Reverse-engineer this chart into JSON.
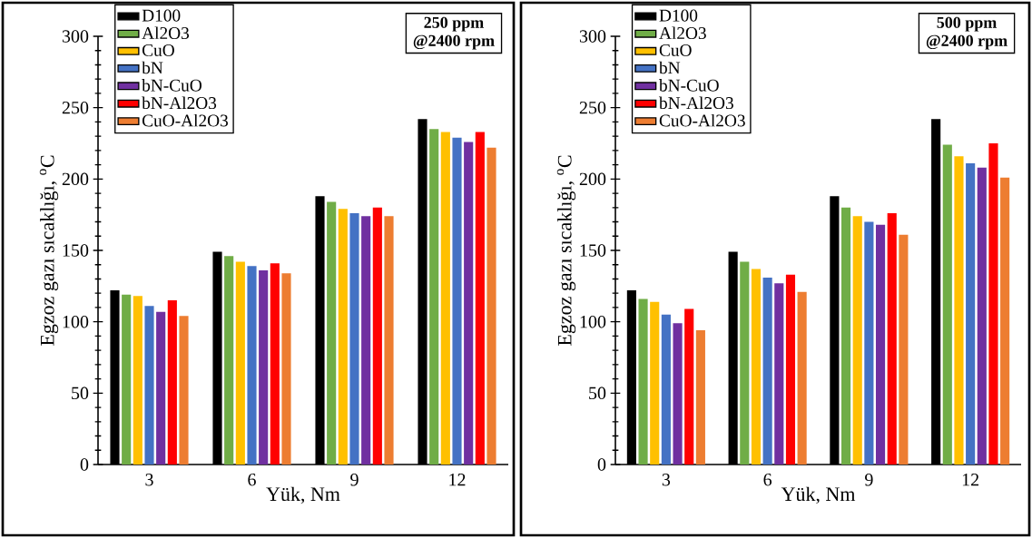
{
  "chart_data": [
    {
      "type": "bar",
      "xlabel": "Yük, Nm",
      "ylabel": "Egzoz gazı sıcaklığı, $^{o}$C",
      "annotations": [
        "250 ppm",
        "@2400 rpm"
      ],
      "categories": [
        "3",
        "6",
        "9",
        "12"
      ],
      "ylim": [
        0,
        300
      ],
      "yticks": [
        0,
        50,
        100,
        150,
        200,
        250,
        300
      ],
      "legend": "top left",
      "series": [
        {
          "name": "D100",
          "color": "#000000",
          "values": [
            122,
            149,
            188,
            242
          ]
        },
        {
          "name": "Al2O3",
          "color": "#70ad47",
          "values": [
            119,
            146,
            184,
            235
          ]
        },
        {
          "name": "CuO",
          "color": "#ffc000",
          "values": [
            118,
            142,
            179,
            233
          ]
        },
        {
          "name": "bN",
          "color": "#4472c4",
          "values": [
            111,
            139,
            176,
            229
          ]
        },
        {
          "name": "bN-CuO",
          "color": "#7030a0",
          "values": [
            107,
            136,
            174,
            226
          ]
        },
        {
          "name": "bN-Al2O3",
          "color": "#ff0000",
          "values": [
            115,
            141,
            180,
            233
          ]
        },
        {
          "name": "CuO-Al2O3",
          "color": "#ed7d31",
          "values": [
            104,
            134,
            174,
            222
          ]
        }
      ]
    },
    {
      "type": "bar",
      "xlabel": "Yük, Nm",
      "ylabel": "Egzoz gazı sıcaklığı, $^{o}$C",
      "annotations": [
        "500 ppm",
        "@2400 rpm"
      ],
      "categories": [
        "3",
        "6",
        "9",
        "12"
      ],
      "ylim": [
        0,
        300
      ],
      "yticks": [
        0,
        50,
        100,
        150,
        200,
        250,
        300
      ],
      "legend": "top left",
      "series": [
        {
          "name": "D100",
          "color": "#000000",
          "values": [
            122,
            149,
            188,
            242
          ]
        },
        {
          "name": "Al2O3",
          "color": "#70ad47",
          "values": [
            116,
            142,
            180,
            224
          ]
        },
        {
          "name": "CuO",
          "color": "#ffc000",
          "values": [
            114,
            137,
            174,
            216
          ]
        },
        {
          "name": "bN",
          "color": "#4472c4",
          "values": [
            105,
            131,
            170,
            211
          ]
        },
        {
          "name": "bN-CuO",
          "color": "#7030a0",
          "values": [
            99,
            127,
            168,
            208
          ]
        },
        {
          "name": "bN-Al2O3",
          "color": "#ff0000",
          "values": [
            109,
            133,
            176,
            225
          ]
        },
        {
          "name": "CuO-Al2O3",
          "color": "#ed7d31",
          "values": [
            94,
            121,
            161,
            201
          ]
        }
      ]
    }
  ]
}
